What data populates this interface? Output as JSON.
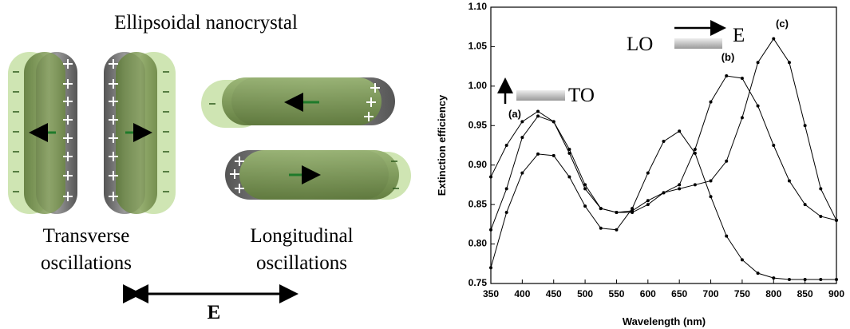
{
  "diagram": {
    "title": "Ellipsoidal nanocrystal",
    "transverse": [
      "Transverse",
      "oscillations"
    ],
    "longitudinal": [
      "Longitudinal",
      "oscillations"
    ],
    "field": "E"
  },
  "chart_data": {
    "type": "line",
    "xlabel": "Wavelength (nm)",
    "ylabel": "Extinction efficiency",
    "x": [
      350,
      375,
      400,
      425,
      450,
      475,
      500,
      525,
      550,
      575,
      600,
      625,
      650,
      675,
      700,
      725,
      750,
      775,
      800,
      825,
      850,
      875,
      900
    ],
    "series": [
      {
        "name": "(a)",
        "color": "#000000",
        "values": [
          0.77,
          0.84,
          0.89,
          0.914,
          0.912,
          0.885,
          0.848,
          0.82,
          0.818,
          0.845,
          0.89,
          0.93,
          0.943,
          0.915,
          0.86,
          0.81,
          0.78,
          0.763,
          0.757,
          0.755,
          0.755,
          0.755,
          0.755
        ]
      },
      {
        "name": "(b)",
        "color": "#000000",
        "values": [
          0.818,
          0.87,
          0.935,
          0.962,
          0.955,
          0.915,
          0.87,
          0.845,
          0.84,
          0.842,
          0.855,
          0.865,
          0.875,
          0.92,
          0.98,
          1.013,
          1.01,
          0.975,
          0.925,
          0.88,
          0.85,
          0.835,
          0.83
        ]
      },
      {
        "name": "(c)",
        "color": "#000000",
        "values": [
          0.885,
          0.925,
          0.955,
          0.968,
          0.955,
          0.92,
          0.875,
          0.845,
          0.84,
          0.84,
          0.85,
          0.865,
          0.87,
          0.875,
          0.88,
          0.905,
          0.96,
          1.03,
          1.06,
          1.03,
          0.95,
          0.87,
          0.83
        ]
      }
    ],
    "annotations": [
      "LO",
      "E",
      "TO"
    ],
    "xlim": [
      350,
      900
    ],
    "ylim": [
      0.75,
      1.1
    ],
    "xticks": [
      350,
      400,
      450,
      500,
      550,
      600,
      650,
      700,
      750,
      800,
      850,
      900
    ],
    "yticks": [
      0.75,
      {
        "value": 0.8,
        "label": "0.80"
      },
      0.85,
      {
        "value": 0.9,
        "label": "0.90"
      },
      0.95,
      {
        "value": 1.0,
        "label": "1.00"
      },
      1.05,
      {
        "value": 1.1,
        "label": "1.10"
      }
    ]
  }
}
